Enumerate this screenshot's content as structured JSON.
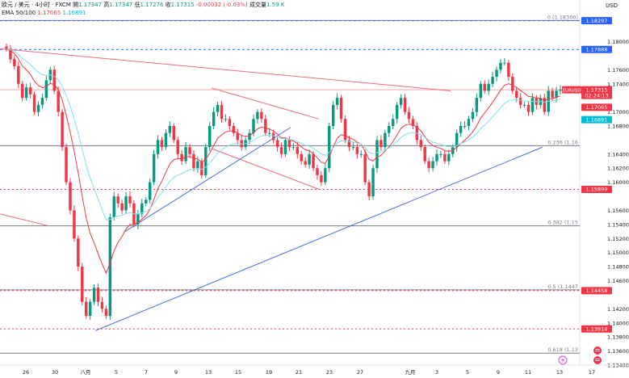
{
  "header": {
    "symbol": "欧元 / 美元 · 4小时 · FXCM",
    "open_label": "開",
    "open": "1.17347",
    "high_label": "高",
    "high": "1.17347",
    "low_label": "低",
    "low": "1.17276",
    "close_label": "收",
    "close": "1.17315",
    "change": "-0.00032 (-0.03%)",
    "volume_label": "成交量",
    "volume": "1.59 K"
  },
  "ema_legend": {
    "label": "EMA 50/100",
    "ema50": "1.17065",
    "ema100": "1.16891"
  },
  "unit": "USD",
  "chart_data": {
    "type": "candlestick",
    "symbol": "EURUSD",
    "timeframe": "4h",
    "ylim": [
      1.134,
      1.185
    ],
    "y_ticks": [
      "1.18000",
      "1.17600",
      "1.17400",
      "1.17000",
      "1.16800",
      "1.16400",
      "1.16200",
      "1.16000",
      "1.15600",
      "1.15400",
      "1.15200",
      "1.15000",
      "1.14800",
      "1.14600",
      "1.14200",
      "1.14000",
      "1.13800",
      "1.13600",
      "1.13400"
    ],
    "x_ticks": [
      "26",
      "30",
      "八月",
      "5",
      "7",
      "9",
      "13",
      "15",
      "19",
      "21",
      "23",
      "27",
      "九月",
      "3",
      "5",
      "9",
      "11",
      "13",
      "17"
    ],
    "price_badges": [
      {
        "price": 1.18297,
        "label": "1.18297",
        "color": "#2962ff"
      },
      {
        "price": 1.17888,
        "label": "1.17888",
        "color": "#2962ff"
      },
      {
        "price": 1.17315,
        "label": "1.17315",
        "label2": "02:24:13",
        "color": "#f23645",
        "tag": "EURUSD"
      },
      {
        "price": 1.17065,
        "label": "1.17065",
        "color": "#f23645"
      },
      {
        "price": 1.16891,
        "label": "1.16891",
        "color": "#00bcd4"
      },
      {
        "price": 1.15899,
        "label": "1.15899",
        "color": "#f23645"
      },
      {
        "price": 1.14458,
        "label": "1.14458",
        "color": "#f23645"
      },
      {
        "price": 1.13914,
        "label": "1.13914",
        "color": "#f23645"
      }
    ],
    "fib_levels": [
      {
        "price": 1.183,
        "label": "0 (1.18300)"
      },
      {
        "price": 1.1652,
        "label": "0.236 (1.16"
      },
      {
        "price": 1.1538,
        "label": "0.382 (1.15"
      },
      {
        "price": 1.1447,
        "label": "0.5 (1.1447"
      },
      {
        "price": 1.1357,
        "label": "0.618 (1.13"
      }
    ],
    "closes": [
      1.179,
      1.1775,
      1.1765,
      1.174,
      1.172,
      1.1735,
      1.1725,
      1.17,
      1.171,
      1.172,
      1.1745,
      1.176,
      1.173,
      1.17,
      1.165,
      1.16,
      1.156,
      1.152,
      1.148,
      1.143,
      1.141,
      1.143,
      1.145,
      1.143,
      1.142,
      1.141,
      1.155,
      1.158,
      1.157,
      1.156,
      1.158,
      1.157,
      1.154,
      1.1555,
      1.157,
      1.1575,
      1.16,
      1.164,
      1.166,
      1.165,
      1.167,
      1.168,
      1.166,
      1.164,
      1.163,
      1.165,
      1.164,
      1.162,
      1.163,
      1.161,
      1.165,
      1.168,
      1.17,
      1.171,
      1.169,
      1.169,
      1.168,
      1.167,
      1.166,
      1.165,
      1.166,
      1.167,
      1.169,
      1.17,
      1.169,
      1.167,
      1.167,
      1.166,
      1.165,
      1.164,
      1.166,
      1.165,
      1.165,
      1.164,
      1.163,
      1.1625,
      1.164,
      1.162,
      1.161,
      1.16,
      1.162,
      1.168,
      1.171,
      1.172,
      1.169,
      1.166,
      1.165,
      1.165,
      1.164,
      1.164,
      1.16,
      1.158,
      1.162,
      1.166,
      1.165,
      1.167,
      1.168,
      1.169,
      1.171,
      1.172,
      1.17,
      1.169,
      1.168,
      1.166,
      1.165,
      1.163,
      1.162,
      1.163,
      1.164,
      1.164,
      1.163,
      1.164,
      1.165,
      1.167,
      1.168,
      1.168,
      1.169,
      1.17,
      1.172,
      1.174,
      1.173,
      1.174,
      1.175,
      1.176,
      1.177,
      1.177,
      1.175,
      1.173,
      1.172,
      1.171,
      1.171,
      1.17,
      1.172,
      1.171,
      1.172,
      1.17,
      1.173,
      1.172,
      1.173,
      1.17315
    ]
  },
  "footer_icons": [
    "lightning-icon",
    "flag-icon",
    "flag-icon"
  ]
}
